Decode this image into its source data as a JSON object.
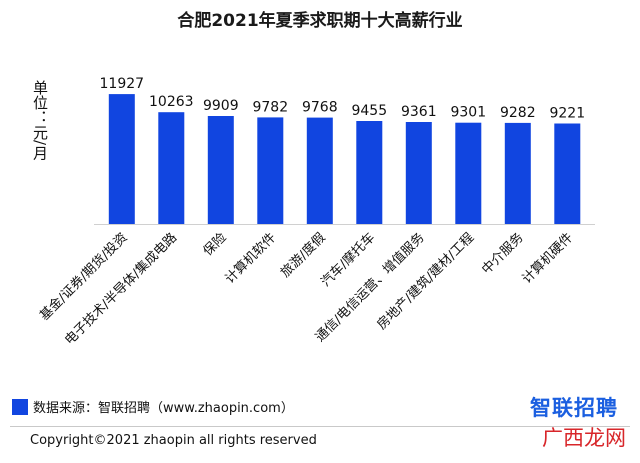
{
  "chart_data": {
    "type": "bar",
    "title": "合肥2021年夏季求职期十大高薪行业",
    "ylabel": "单位：元/月",
    "xlabel": "",
    "ylim": [
      0,
      12300
    ],
    "categories": [
      "基金/证券/期货/投资",
      "电子技术/半导体/集成电路",
      "保险",
      "计算机软件",
      "旅游/度假",
      "汽车/摩托车",
      "通信/电信运营、增值服务",
      "房地产/建筑/建材/工程",
      "中介服务",
      "计算机硬件"
    ],
    "values": [
      11927,
      10263,
      9909,
      9782,
      9768,
      9455,
      9361,
      9301,
      9282,
      9221
    ],
    "bar_color": "#1145e0",
    "grid": false
  },
  "source": "数据来源：智联招聘（www.zhaopin.com）",
  "copyright": "Copyright©2021 zhaopin all rights reserved",
  "brand_logo": "智联招聘",
  "watermark": "广西龙网"
}
